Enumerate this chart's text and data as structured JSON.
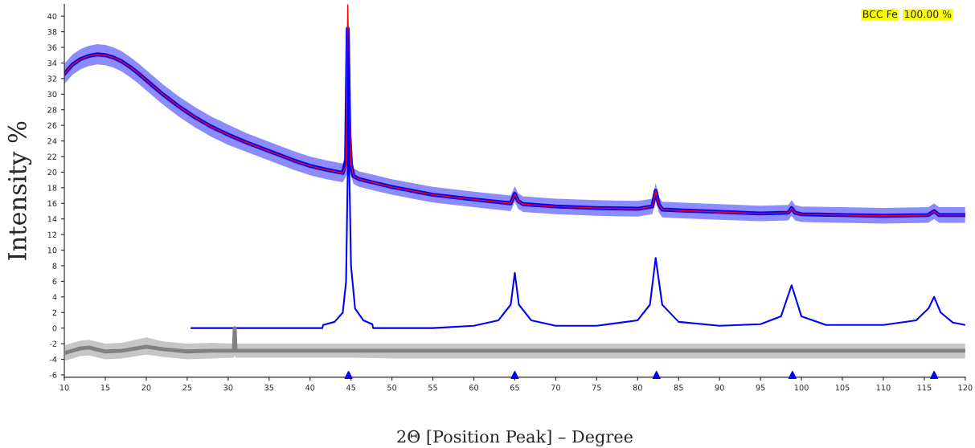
{
  "chart_data": {
    "type": "line",
    "xlabel": "2Θ [Position Peak] – Degree",
    "ylabel": "Intensity %",
    "annotations": [
      "BCC Fe",
      "100.00 %"
    ],
    "xlim": [
      10,
      120
    ],
    "xticks": [
      10,
      15,
      20,
      25,
      30,
      35,
      40,
      45,
      50,
      55,
      60,
      65,
      70,
      75,
      80,
      85,
      90,
      95,
      100,
      105,
      110,
      115,
      120
    ],
    "ylim": [
      -6.3,
      41.5
    ],
    "yticks": [
      -6,
      -4,
      -2,
      0,
      2,
      4,
      6,
      8,
      10,
      12,
      14,
      16,
      18,
      20,
      22,
      24,
      26,
      28,
      30,
      32,
      34,
      36,
      38,
      40
    ],
    "grid": false,
    "legend": false,
    "series": [
      {
        "color": "#0000ff",
        "x": [
          10,
          11,
          12,
          13,
          14,
          15,
          16,
          17,
          18,
          19,
          20,
          21,
          22,
          23,
          24,
          25,
          26,
          27,
          28,
          29,
          30,
          32,
          34,
          36,
          38,
          40,
          42,
          44,
          44.4,
          44.6,
          44.8,
          45,
          45.3,
          46,
          48,
          50,
          55,
          60,
          64.5,
          65,
          65.4,
          66,
          70,
          75,
          80,
          81.8,
          82.2,
          82.6,
          83,
          85,
          90,
          95,
          98.4,
          98.8,
          99.2,
          100,
          105,
          110,
          115.5,
          116.2,
          116.8,
          120
        ],
        "values": [
          32.6,
          33.8,
          34.5,
          34.9,
          35.1,
          35.0,
          34.7,
          34.2,
          33.5,
          32.7,
          31.8,
          30.9,
          30.0,
          29.2,
          28.4,
          27.7,
          27.0,
          26.4,
          25.8,
          25.3,
          24.8,
          23.9,
          23.1,
          22.3,
          21.5,
          20.8,
          20.3,
          19.9,
          21.5,
          38.4,
          25,
          21,
          19.5,
          19.1,
          18.6,
          18.1,
          17.1,
          16.5,
          16.0,
          17.2,
          16.3,
          15.9,
          15.6,
          15.4,
          15.3,
          15.6,
          17.6,
          15.8,
          15.2,
          15.1,
          14.9,
          14.7,
          14.8,
          15.4,
          14.8,
          14.6,
          14.5,
          14.4,
          14.5,
          15.0,
          14.5,
          14.5
        ],
        "upper": [
          33.9,
          35.1,
          35.8,
          36.2,
          36.4,
          36.3,
          36.0,
          35.5,
          34.8,
          34.0,
          33.1,
          32.2,
          31.3,
          30.5,
          29.7,
          29.0,
          28.3,
          27.7,
          27.1,
          26.6,
          26.1,
          25.1,
          24.3,
          23.5,
          22.7,
          22.0,
          21.5,
          21.1,
          22.5,
          38.4,
          27,
          22.5,
          20.5,
          20.1,
          19.6,
          19.1,
          18.1,
          17.5,
          17.0,
          18.2,
          17.3,
          16.9,
          16.6,
          16.4,
          16.3,
          16.6,
          18.6,
          16.8,
          16.2,
          16.1,
          15.9,
          15.7,
          15.8,
          16.4,
          15.8,
          15.6,
          15.5,
          15.4,
          15.5,
          16.0,
          15.5,
          15.5
        ],
        "lower": [
          31.3,
          32.5,
          33.2,
          33.6,
          33.8,
          33.7,
          33.4,
          32.9,
          32.2,
          31.4,
          30.5,
          29.6,
          28.7,
          27.9,
          27.1,
          26.4,
          25.7,
          25.1,
          24.5,
          24.0,
          23.5,
          22.7,
          21.9,
          21.1,
          20.3,
          19.6,
          19.1,
          18.7,
          19.5,
          20,
          20,
          19.5,
          18.5,
          18.1,
          17.6,
          17.1,
          16.1,
          15.5,
          15.0,
          16.2,
          15.3,
          14.9,
          14.6,
          14.4,
          14.3,
          14.6,
          16.6,
          14.8,
          14.2,
          14.1,
          13.9,
          13.7,
          13.8,
          14.4,
          13.8,
          13.6,
          13.5,
          13.4,
          13.5,
          14.0,
          13.5,
          13.5
        ]
      },
      {
        "color": "#ff0000",
        "x": [
          10,
          11,
          12,
          13,
          14,
          15,
          16,
          17,
          18,
          19,
          20,
          21,
          22,
          23,
          24,
          25,
          26,
          27,
          28,
          29,
          30,
          32,
          34,
          36,
          38,
          40,
          42,
          44,
          44.4,
          44.6,
          44.8,
          45,
          45.3,
          46,
          48,
          50,
          55,
          60,
          64.5,
          65,
          65.4,
          66,
          70,
          75,
          80,
          81.8,
          82.2,
          82.6,
          83,
          85,
          90,
          95,
          98.4,
          98.8,
          99.2,
          100,
          105,
          110,
          115.5,
          116.2,
          116.8,
          120
        ],
        "values": [
          32.6,
          33.8,
          34.5,
          34.9,
          35.1,
          35.0,
          34.7,
          34.2,
          33.5,
          32.7,
          31.8,
          30.9,
          30.0,
          29.2,
          28.4,
          27.7,
          27.0,
          26.4,
          25.8,
          25.3,
          24.8,
          23.9,
          23.1,
          22.3,
          21.5,
          20.8,
          20.3,
          19.9,
          20.8,
          41.5,
          30.0,
          21.0,
          19.5,
          19.1,
          18.6,
          18.1,
          17.1,
          16.5,
          16.0,
          17.2,
          16.3,
          15.9,
          15.6,
          15.4,
          15.3,
          15.6,
          17.6,
          15.8,
          15.2,
          15.1,
          14.9,
          14.7,
          14.8,
          15.4,
          14.8,
          14.6,
          14.5,
          14.4,
          14.5,
          15.0,
          14.5,
          14.5
        ]
      },
      {
        "color": "#0000ff",
        "x": [
          25.5,
          41.5,
          41.6,
          43,
          44,
          44.4,
          44.6,
          44.7,
          44.8,
          45,
          45.5,
          46.5,
          47.6,
          47.7,
          55,
          60,
          63,
          64.5,
          65,
          65.5,
          67,
          70,
          75,
          80,
          81.5,
          82.2,
          83,
          85,
          90,
          95,
          97.5,
          98.8,
          100,
          103,
          110,
          114,
          115.5,
          116.2,
          117,
          118.5,
          120
        ],
        "values": [
          0,
          0,
          0.4,
          0.8,
          2,
          6,
          20,
          38.3,
          20,
          8,
          2.5,
          1,
          0.5,
          0,
          0,
          0.3,
          1,
          3,
          7.1,
          3,
          1,
          0.3,
          0.3,
          1,
          3,
          9.0,
          3,
          0.8,
          0.3,
          0.5,
          1.5,
          5.5,
          1.5,
          0.4,
          0.4,
          1,
          2.5,
          4.0,
          2,
          0.7,
          0.4
        ]
      },
      {
        "color": "#808080",
        "x": [
          10,
          12,
          13,
          15,
          17,
          20,
          22,
          25,
          28,
          30.7,
          30.8,
          30.9,
          33,
          36,
          40,
          45,
          50,
          60,
          70,
          80,
          90,
          100,
          110,
          120
        ],
        "values": [
          -3.2,
          -2.6,
          -2.5,
          -3.0,
          -2.9,
          -2.4,
          -2.7,
          -3.0,
          -2.9,
          -2.9,
          0,
          -2.9,
          -2.9,
          -2.9,
          -2.9,
          -2.9,
          -2.9,
          -2.9,
          -2.9,
          -2.9,
          -2.9,
          -2.9,
          -2.9,
          -2.9
        ],
        "lower": [
          -4.2,
          -3.6,
          -3.5,
          -4.0,
          -3.9,
          -3.4,
          -3.7,
          -4.0,
          -3.9,
          -3.8,
          -3.5,
          -3.8,
          -3.8,
          -3.8,
          -3.8,
          -3.8,
          -3.9,
          -3.9,
          -3.9,
          -3.9,
          -3.9,
          -3.9,
          -3.9,
          -3.9
        ],
        "upper": [
          -2.2,
          -1.6,
          -1.5,
          -2.0,
          -1.9,
          -1.2,
          -1.7,
          -2.0,
          -1.9,
          -2.0,
          0,
          -2.0,
          -2.0,
          -2.0,
          -2.0,
          -2.0,
          -2.0,
          -2.0,
          -2.0,
          -2.0,
          -2.0,
          -2.0,
          -2.0,
          -2.0
        ]
      },
      {
        "type": "scatter",
        "color": "#0000ff",
        "marker": "triangle",
        "x": [
          44.7,
          65.0,
          82.3,
          98.9,
          116.2
        ],
        "values": [
          -6,
          -6,
          -6,
          -6,
          -6
        ]
      }
    ]
  }
}
